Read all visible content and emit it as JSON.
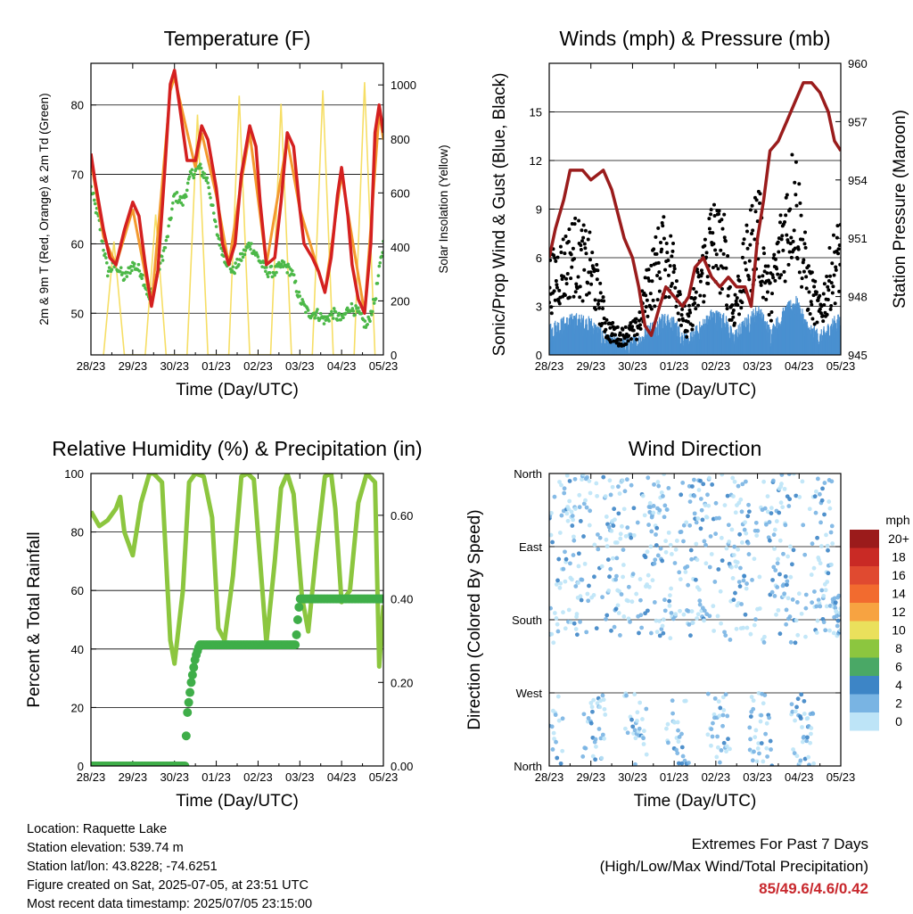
{
  "chart_data": [
    {
      "type": "line",
      "title": "Temperature (F)",
      "xlabel": "Time (Day/UTC)",
      "ylabel": "2m & 9m T (Red, Orange) & 2m Td (Green)",
      "ylabel_right": "Solar Insolation (Yellow)",
      "xticks": [
        "28/23",
        "29/23",
        "30/23",
        "01/23",
        "02/23",
        "03/23",
        "04/23",
        "05/23"
      ],
      "yticks": [
        50,
        60,
        70,
        80
      ],
      "yticks_right": [
        0,
        200,
        400,
        600,
        800,
        1000
      ],
      "ylim": [
        44,
        86
      ],
      "ylim_right": [
        0,
        1080
      ],
      "grid": true,
      "series": [
        {
          "name": "2m T",
          "color": "#d42020",
          "x": [
            0,
            0.1,
            0.3,
            0.45,
            0.6,
            0.8,
            1.0,
            1.15,
            1.3,
            1.45,
            1.6,
            1.75,
            1.9,
            2.0,
            2.12,
            2.3,
            2.5,
            2.65,
            2.8,
            3.0,
            3.15,
            3.3,
            3.45,
            3.6,
            3.8,
            3.95,
            4.05,
            4.2,
            4.4,
            4.55,
            4.7,
            4.85,
            5.0,
            5.1,
            5.3,
            5.45,
            5.6,
            5.75,
            5.9,
            6.0,
            6.15,
            6.25,
            6.4,
            6.55,
            6.7,
            6.8,
            6.9,
            7.0
          ],
          "values": [
            73,
            69,
            62,
            58,
            57,
            62,
            66,
            64,
            57,
            51,
            56,
            69,
            83,
            85,
            80,
            72,
            72,
            77,
            75,
            68,
            60,
            57,
            60,
            70,
            77,
            74,
            66,
            57,
            58,
            66,
            76,
            74,
            65,
            60,
            58,
            56,
            53,
            58,
            67,
            71,
            64,
            57,
            52,
            50,
            60,
            76,
            80,
            76
          ]
        },
        {
          "name": "9m T",
          "color": "#f39a2e",
          "x": [
            0,
            0.3,
            0.6,
            1.0,
            1.45,
            1.9,
            2.0,
            2.5,
            2.65,
            3.0,
            3.3,
            3.6,
            3.8,
            4.2,
            4.7,
            5.0,
            5.6,
            6.0,
            6.55,
            6.9,
            7.0
          ],
          "values": [
            72,
            61,
            57,
            65,
            51,
            82,
            84,
            71,
            76,
            67,
            57,
            69,
            76,
            57,
            75,
            65,
            53,
            70,
            50,
            79,
            75
          ]
        },
        {
          "name": "2m Td",
          "color": "#4cb848",
          "x": [
            0,
            0.2,
            0.4,
            0.6,
            0.8,
            1.0,
            1.2,
            1.4,
            1.6,
            1.8,
            2.0,
            2.2,
            2.4,
            2.6,
            2.8,
            3.0,
            3.2,
            3.4,
            3.6,
            3.8,
            4.0,
            4.2,
            4.4,
            4.6,
            4.8,
            5.0,
            5.2,
            5.4,
            5.6,
            5.8,
            6.0,
            6.2,
            6.4,
            6.6,
            6.8,
            7.0
          ],
          "values": [
            68,
            63,
            56,
            57,
            55,
            57,
            56,
            52,
            56,
            60,
            67,
            66,
            70,
            71,
            69,
            62,
            58,
            56,
            58,
            60,
            58,
            56,
            56,
            57,
            56,
            52,
            50,
            50,
            49,
            50,
            49,
            51,
            50,
            48,
            52,
            60
          ]
        },
        {
          "name": "Solar Insolation",
          "color": "#f5d84a",
          "axis": "right",
          "x": [
            0.3,
            0.55,
            0.8,
            1.3,
            1.55,
            1.8,
            2.3,
            2.55,
            2.8,
            3.3,
            3.55,
            3.8,
            4.3,
            4.55,
            4.8,
            5.3,
            5.55,
            5.8,
            6.3,
            6.55,
            6.8
          ],
          "values": [
            0,
            420,
            0,
            0,
            520,
            0,
            0,
            890,
            0,
            0,
            960,
            0,
            0,
            930,
            0,
            0,
            980,
            0,
            0,
            1010,
            0
          ]
        }
      ]
    },
    {
      "type": "scatter",
      "title": "Winds (mph) & Pressure (mb)",
      "xlabel": "Time (Day/UTC)",
      "ylabel": "Sonic/Prop Wind & Gust (Blue, Black)",
      "ylabel_right": "Station Pressure (Maroon)",
      "xticks": [
        "28/23",
        "29/23",
        "30/23",
        "01/23",
        "02/23",
        "03/23",
        "04/23",
        "05/23"
      ],
      "yticks": [
        0,
        3,
        6,
        9,
        12,
        15
      ],
      "yticks_right": [
        945,
        948,
        951,
        954,
        957,
        960
      ],
      "ylim": [
        0,
        18
      ],
      "ylim_right": [
        945,
        960
      ],
      "grid": true,
      "series": [
        {
          "name": "Sonic/Prop Wind",
          "color": "#4a90d0"
        },
        {
          "name": "Gust",
          "color": "#000000"
        },
        {
          "name": "Station Pressure",
          "color": "#9a1c1c",
          "axis": "right",
          "x": [
            0,
            0.15,
            0.35,
            0.5,
            0.8,
            1.0,
            1.3,
            1.5,
            1.8,
            2.0,
            2.15,
            2.3,
            2.45,
            2.65,
            2.8,
            3.0,
            3.2,
            3.35,
            3.5,
            3.7,
            3.9,
            4.1,
            4.3,
            4.5,
            4.7,
            4.85,
            5.0,
            5.15,
            5.3,
            5.5,
            5.7,
            5.9,
            6.1,
            6.3,
            6.5,
            6.7,
            6.85,
            7.0
          ],
          "values": [
            950,
            951.5,
            953,
            954.5,
            954.5,
            954,
            954.5,
            953.5,
            951,
            950,
            948.5,
            946.5,
            946,
            947.5,
            948.5,
            948,
            947.5,
            948,
            949.5,
            950,
            949,
            948.5,
            949,
            948.5,
            948.5,
            947.5,
            951,
            953,
            955.5,
            956,
            957,
            958,
            959,
            959,
            958.5,
            957.5,
            956,
            955.5
          ]
        }
      ]
    },
    {
      "type": "line",
      "title": "Relative Humidity (%) & Precipitation (in)",
      "xlabel": "Time (Day/UTC)",
      "ylabel": "Percent & Total Rainfall",
      "xticks": [
        "28/23",
        "29/23",
        "30/23",
        "01/23",
        "02/23",
        "03/23",
        "04/23",
        "05/23"
      ],
      "yticks": [
        0,
        20,
        40,
        60,
        80,
        100
      ],
      "yticks_right": [
        "0.00",
        "0.20",
        "0.40",
        "0.60"
      ],
      "ylim": [
        0,
        100
      ],
      "ylim_right": [
        0,
        0.7
      ],
      "grid": true,
      "series": [
        {
          "name": "Relative Humidity",
          "color": "#8cc63f",
          "x": [
            0,
            0.2,
            0.4,
            0.6,
            0.7,
            0.8,
            1.0,
            1.2,
            1.4,
            1.5,
            1.7,
            1.9,
            2.0,
            2.2,
            2.35,
            2.5,
            2.7,
            2.9,
            3.05,
            3.2,
            3.4,
            3.6,
            3.75,
            3.9,
            4.05,
            4.2,
            4.4,
            4.55,
            4.7,
            4.85,
            5.05,
            5.2,
            5.4,
            5.6,
            5.75,
            5.85,
            6.0,
            6.2,
            6.4,
            6.6,
            6.8,
            6.9,
            7.0
          ],
          "values": [
            87,
            82,
            84,
            88,
            92,
            80,
            72,
            90,
            100,
            100,
            97,
            43,
            35,
            60,
            97,
            100,
            99,
            85,
            47,
            43,
            65,
            99,
            100,
            98,
            70,
            42,
            70,
            95,
            100,
            93,
            58,
            46,
            74,
            99,
            100,
            88,
            56,
            60,
            90,
            100,
            97,
            34,
            55
          ]
        },
        {
          "name": "Total Precipitation",
          "color": "#3fae49",
          "axis": "right",
          "x": [
            0,
            1.5,
            2.25,
            2.3,
            2.4,
            2.5,
            2.6,
            3.0,
            3.5,
            4.0,
            4.5,
            4.9,
            4.95,
            5.0,
            5.5,
            6.0,
            6.5,
            7.0
          ],
          "values": [
            0,
            0,
            0,
            0.12,
            0.2,
            0.26,
            0.29,
            0.29,
            0.29,
            0.29,
            0.29,
            0.29,
            0.35,
            0.4,
            0.4,
            0.4,
            0.4,
            0.4
          ]
        }
      ]
    },
    {
      "type": "scatter",
      "title": "Wind Direction",
      "xlabel": "Time (Day/UTC)",
      "ylabel": "Direction (Colored By Speed)",
      "xticks": [
        "28/23",
        "29/23",
        "30/23",
        "01/23",
        "02/23",
        "03/23",
        "04/23",
        "05/23"
      ],
      "yticks": [
        "North",
        "West",
        "South",
        "East",
        "North"
      ],
      "grid": true,
      "legend": {
        "title": "mph",
        "placement": "right",
        "labels": [
          "20+",
          "18",
          "16",
          "14",
          "12",
          "10",
          "8",
          "6",
          "4",
          "2",
          "0"
        ],
        "colors": [
          "#9b1b1b",
          "#c92a25",
          "#e04a30",
          "#f26b2f",
          "#f7a341",
          "#eae05c",
          "#8cc63f",
          "#4aa866",
          "#3d85c6",
          "#79b4e3",
          "#bde4f7"
        ]
      },
      "series": [
        {
          "name": "Wind Direction",
          "color": "#79b4e3"
        }
      ]
    }
  ],
  "info": {
    "location": "Location: Raquette Lake",
    "elevation": "Station elevation: 539.74 m",
    "latlon": "Station lat/lon: 43.8228; -74.6251",
    "created": "Figure created on Sat, 2025-07-05, at 23:51 UTC",
    "recent": "Most recent data timestamp: 2025/07/05 23:15:00"
  },
  "extremes": {
    "line1": "Extremes For Past 7 Days",
    "line2": "(High/Low/Max Wind/Total Precipitation)",
    "values": "85/49.6/4.6/0.42"
  }
}
